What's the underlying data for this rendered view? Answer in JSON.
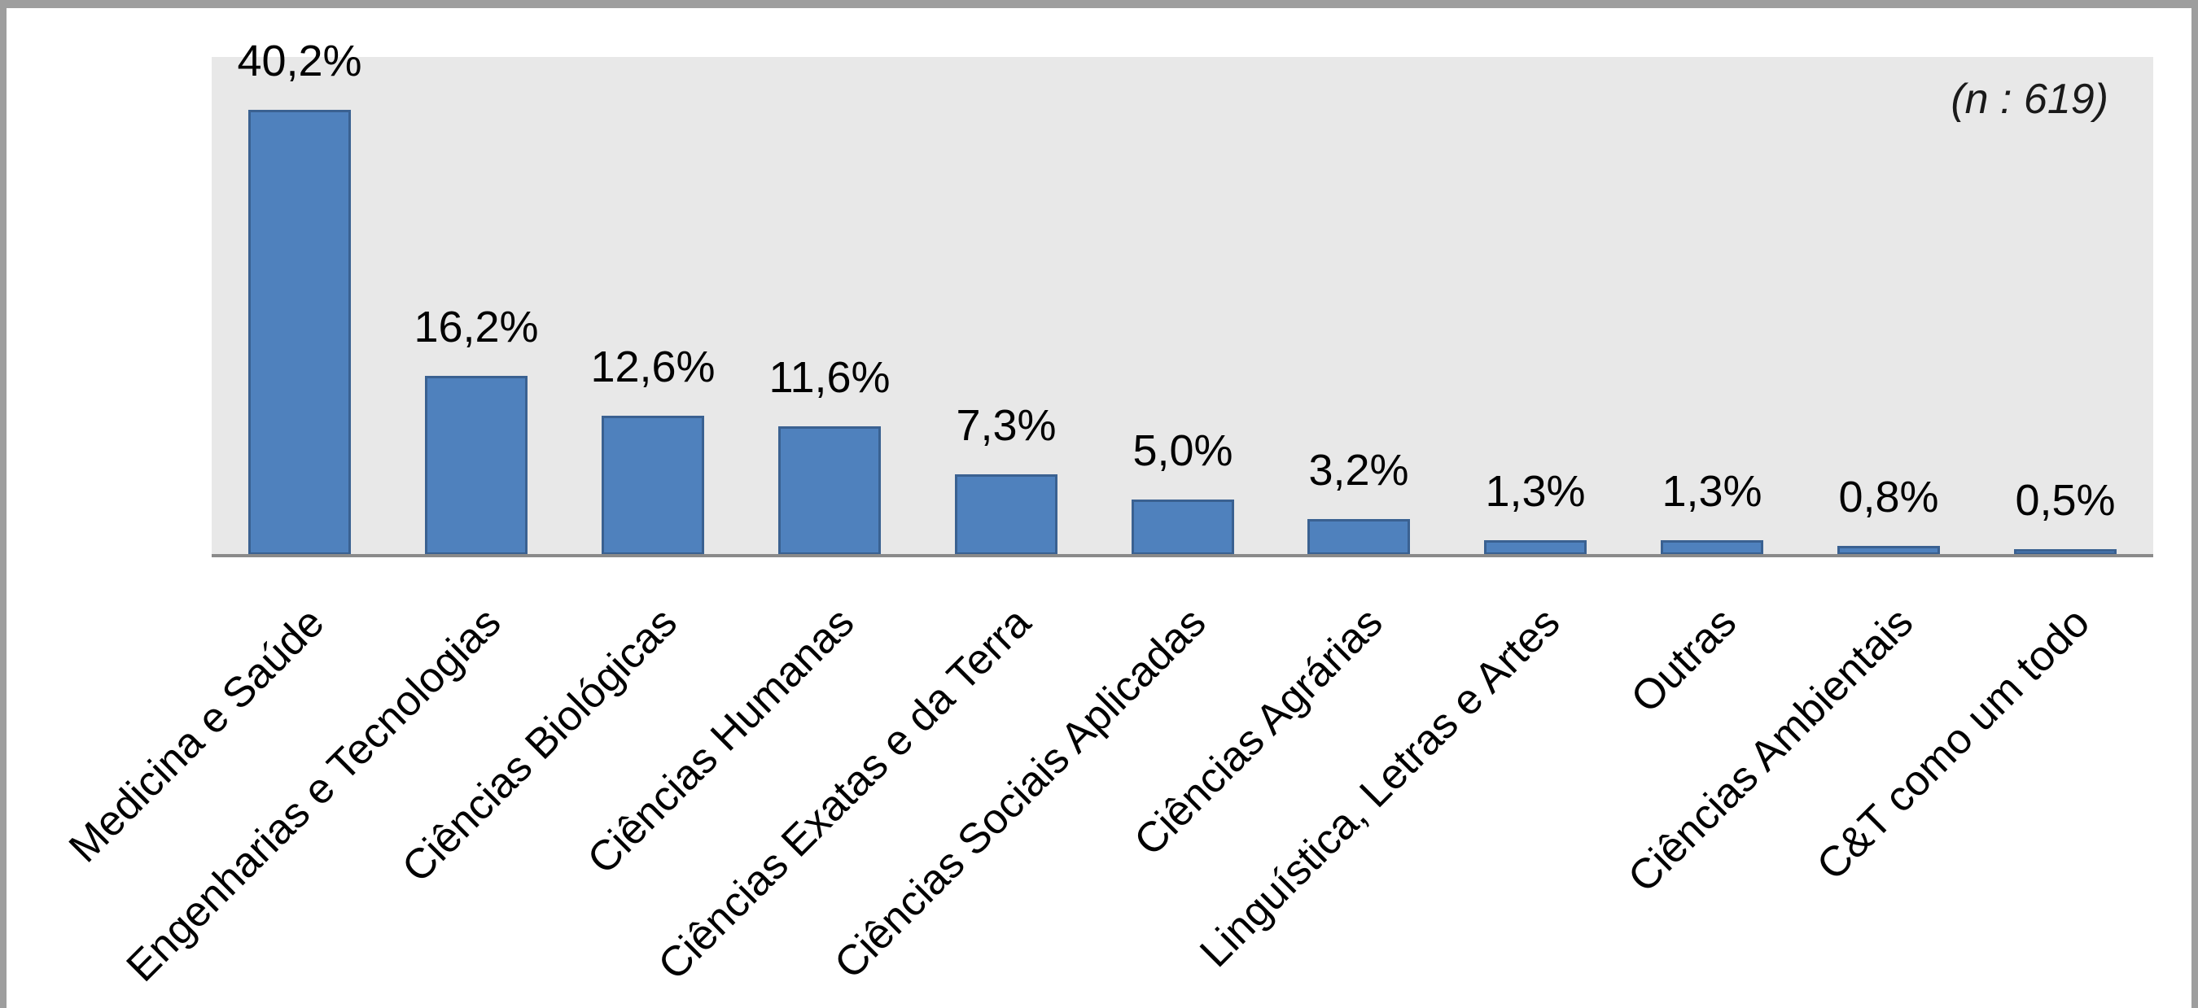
{
  "chart_data": {
    "type": "bar",
    "title": "",
    "annotation": "(n : 619)",
    "categories": [
      "Medicina e Saúde",
      "Engenharias e Tecnologias",
      "Ciências Biológicas",
      "Ciências Humanas",
      "Ciências Exatas e da Terra",
      "Ciências Sociais Aplicadas",
      "Ciências Agrárias",
      "Linguística, Letras e Artes",
      "Outras",
      "Ciências Ambientais",
      "C&T como um todo"
    ],
    "values": [
      40.2,
      16.2,
      12.6,
      11.6,
      7.3,
      5.0,
      3.2,
      1.3,
      1.3,
      0.8,
      0.5
    ],
    "value_labels": [
      "40,2%",
      "16,2%",
      "12,6%",
      "11,6%",
      "7,3%",
      "5,0%",
      "3,2%",
      "1,3%",
      "1,3%",
      "0,8%",
      "0,5%"
    ],
    "xlabel": "",
    "ylabel": "",
    "ylim": [
      0,
      45
    ],
    "grid": false,
    "legend": "none",
    "category_label_rotation_deg": 45,
    "colors": {
      "bar_fill": "#4f81bd",
      "bar_border": "#3a6191",
      "plot_background": "#e8e8e8",
      "axis_line": "#8a8a8a",
      "frame": "#9e9e9e",
      "text": "#000000"
    }
  }
}
